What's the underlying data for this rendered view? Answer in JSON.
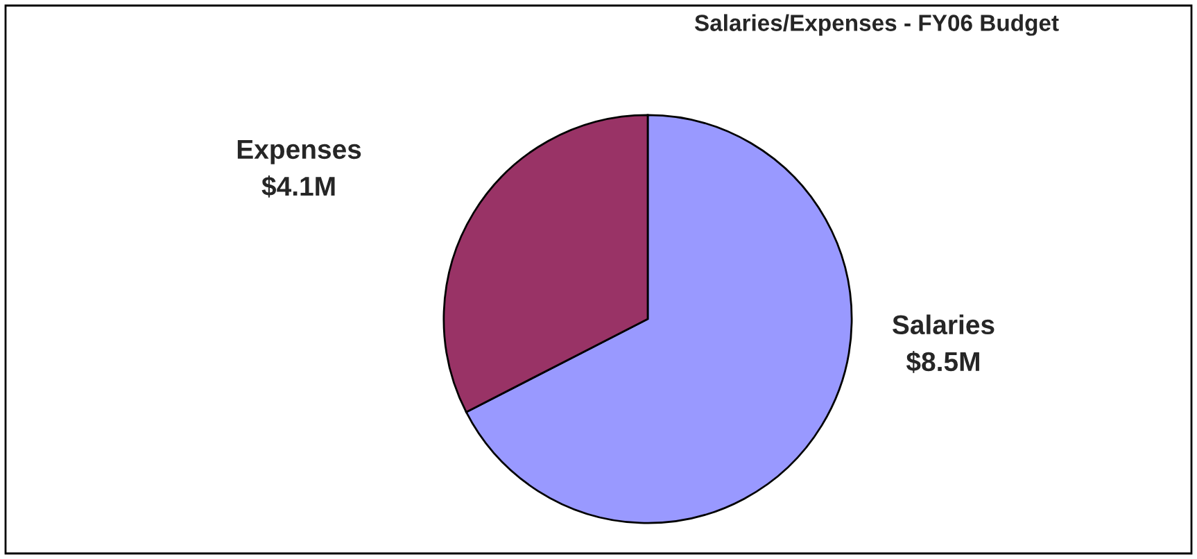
{
  "chart_data": {
    "type": "pie",
    "title": "Salaries/Expenses - FY06 Budget",
    "categories": [
      "Salaries",
      "Expenses"
    ],
    "values": [
      8.5,
      4.1
    ],
    "value_labels": [
      "$8.5M",
      "$4.1M"
    ],
    "colors": [
      "#9999ff",
      "#993366"
    ],
    "legend": false
  }
}
